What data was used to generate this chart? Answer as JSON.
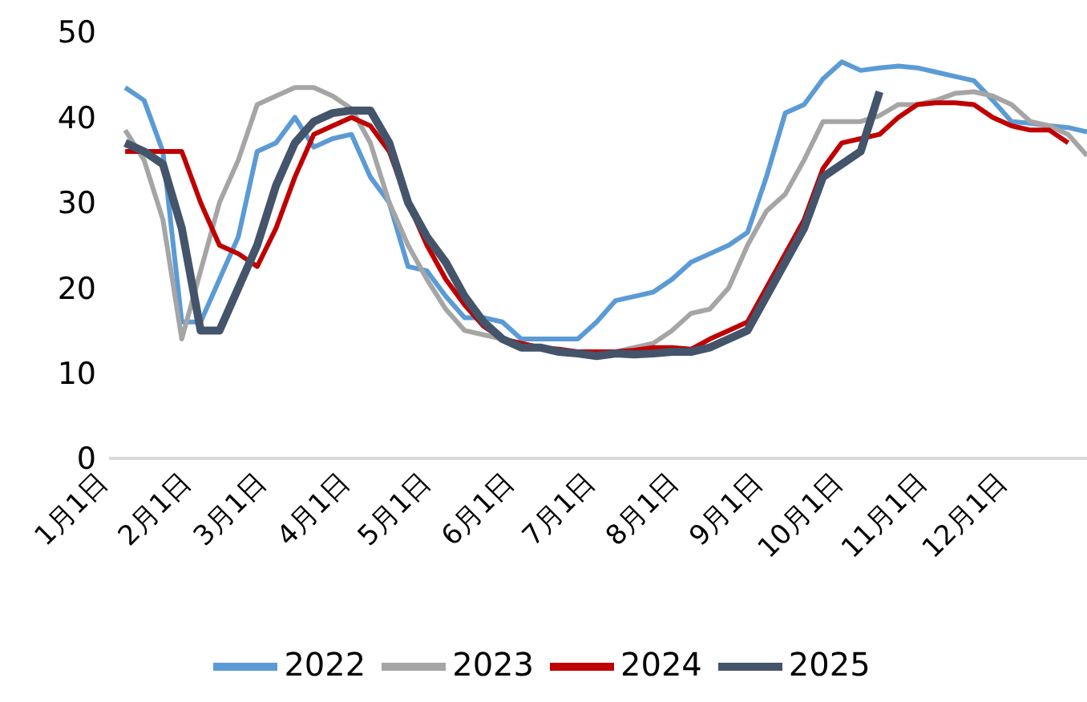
{
  "chart_data": {
    "type": "line",
    "x": [
      "--01-07",
      "--01-14",
      "--01-21",
      "--01-28",
      "--02-04",
      "--02-11",
      "--02-18",
      "--02-25",
      "--03-04",
      "--03-11",
      "--03-18",
      "--03-25",
      "--04-01",
      "--04-08",
      "--04-15",
      "--04-22",
      "--04-29",
      "--05-06",
      "--05-13",
      "--05-20",
      "--05-27",
      "--06-03",
      "--06-10",
      "--06-17",
      "--06-24",
      "--07-01",
      "--07-08",
      "--07-15",
      "--07-22",
      "--07-29",
      "--08-05",
      "--08-12",
      "--08-19",
      "--08-26",
      "--09-02",
      "--09-09",
      "--09-16",
      "--09-23",
      "--09-30",
      "--10-07",
      "--10-14",
      "--10-21",
      "--10-28",
      "--11-04",
      "--11-11",
      "--11-18",
      "--11-25",
      "--12-02",
      "--12-09",
      "--12-16",
      "--12-23",
      "--12-30"
    ],
    "series": [
      {
        "name": "2022",
        "color": "#5b9bd5",
        "values": [
          43.5,
          42,
          36,
          16,
          16,
          21,
          26,
          36,
          37,
          40,
          36.5,
          37.5,
          38,
          33,
          30,
          22.5,
          22,
          19,
          16.5,
          16.5,
          16,
          14,
          14,
          14,
          14,
          16,
          18.5,
          19,
          19.5,
          21,
          23,
          24,
          25,
          26.5,
          33,
          40.5,
          41.5,
          44.5,
          46.5,
          45.5,
          45.8,
          46,
          45.8,
          45.3,
          44.8,
          44.3,
          42,
          39.5,
          39.3,
          39,
          38.8,
          38.3
        ]
      },
      {
        "name": "2023",
        "color": "#a5a5a5",
        "values": [
          38.5,
          35,
          28,
          14,
          22,
          30,
          35,
          41.5,
          42.5,
          43.5,
          43.5,
          42.5,
          41,
          37,
          30,
          25,
          21,
          17.5,
          15,
          14.5,
          14,
          13.5,
          13,
          12.5,
          12.5,
          12.5,
          12.5,
          13,
          13.5,
          15,
          17,
          17.5,
          20,
          25,
          29,
          31,
          35,
          39.5,
          39.5,
          39.5,
          40.2,
          41.5,
          41.5,
          42,
          42.8,
          43,
          42.5,
          41.5,
          39.5,
          39,
          38,
          35.5
        ]
      },
      {
        "name": "2024",
        "color": "#c00000",
        "values": [
          36,
          36,
          36,
          36,
          30,
          25,
          24,
          22.5,
          27,
          33,
          38,
          39,
          40,
          39,
          36,
          30,
          25,
          21,
          18,
          15.5,
          14,
          13.5,
          13,
          12.8,
          12.5,
          12.5,
          12.5,
          12.7,
          13,
          13,
          12.8,
          14,
          15,
          16,
          20,
          24,
          28,
          34,
          37,
          37.5,
          38,
          40,
          41.5,
          41.7,
          41.7,
          41.5,
          40,
          39,
          38.5,
          38.5,
          37,
          null
        ]
      },
      {
        "name": "2025",
        "color": "#44546a",
        "values": [
          37,
          36,
          34.5,
          27,
          15,
          15,
          20,
          25,
          32,
          37,
          39.5,
          40.5,
          40.8,
          40.8,
          37,
          30,
          26,
          23,
          19,
          16,
          14,
          13,
          13,
          12.5,
          12.3,
          12,
          12.3,
          12.2,
          12.3,
          12.5,
          12.5,
          13,
          14,
          15,
          19,
          23,
          27,
          33,
          34.5,
          36,
          43,
          null,
          null,
          null,
          null,
          null,
          null,
          null,
          null,
          null,
          null,
          null
        ]
      }
    ],
    "xlim": [
      "--01-01",
      "--12-30"
    ],
    "xticks": [
      {
        "value": "--01-01",
        "label": "1月1日"
      },
      {
        "value": "--02-01",
        "label": "2月1日"
      },
      {
        "value": "--03-01",
        "label": "3月1日"
      },
      {
        "value": "--04-01",
        "label": "4月1日"
      },
      {
        "value": "--05-01",
        "label": "5月1日"
      },
      {
        "value": "--06-01",
        "label": "6月1日"
      },
      {
        "value": "--07-01",
        "label": "7月1日"
      },
      {
        "value": "--08-01",
        "label": "8月1日"
      },
      {
        "value": "--09-01",
        "label": "9月1日"
      },
      {
        "value": "--10-01",
        "label": "10月1日"
      },
      {
        "value": "--11-01",
        "label": "11月1日"
      },
      {
        "value": "--12-01",
        "label": "12月1日"
      }
    ],
    "ylim": [
      0,
      50
    ],
    "yticks": [
      0,
      10,
      20,
      30,
      40,
      50
    ],
    "grid": false,
    "legend": "bottom",
    "marker": "none",
    "line_style": "solid"
  }
}
